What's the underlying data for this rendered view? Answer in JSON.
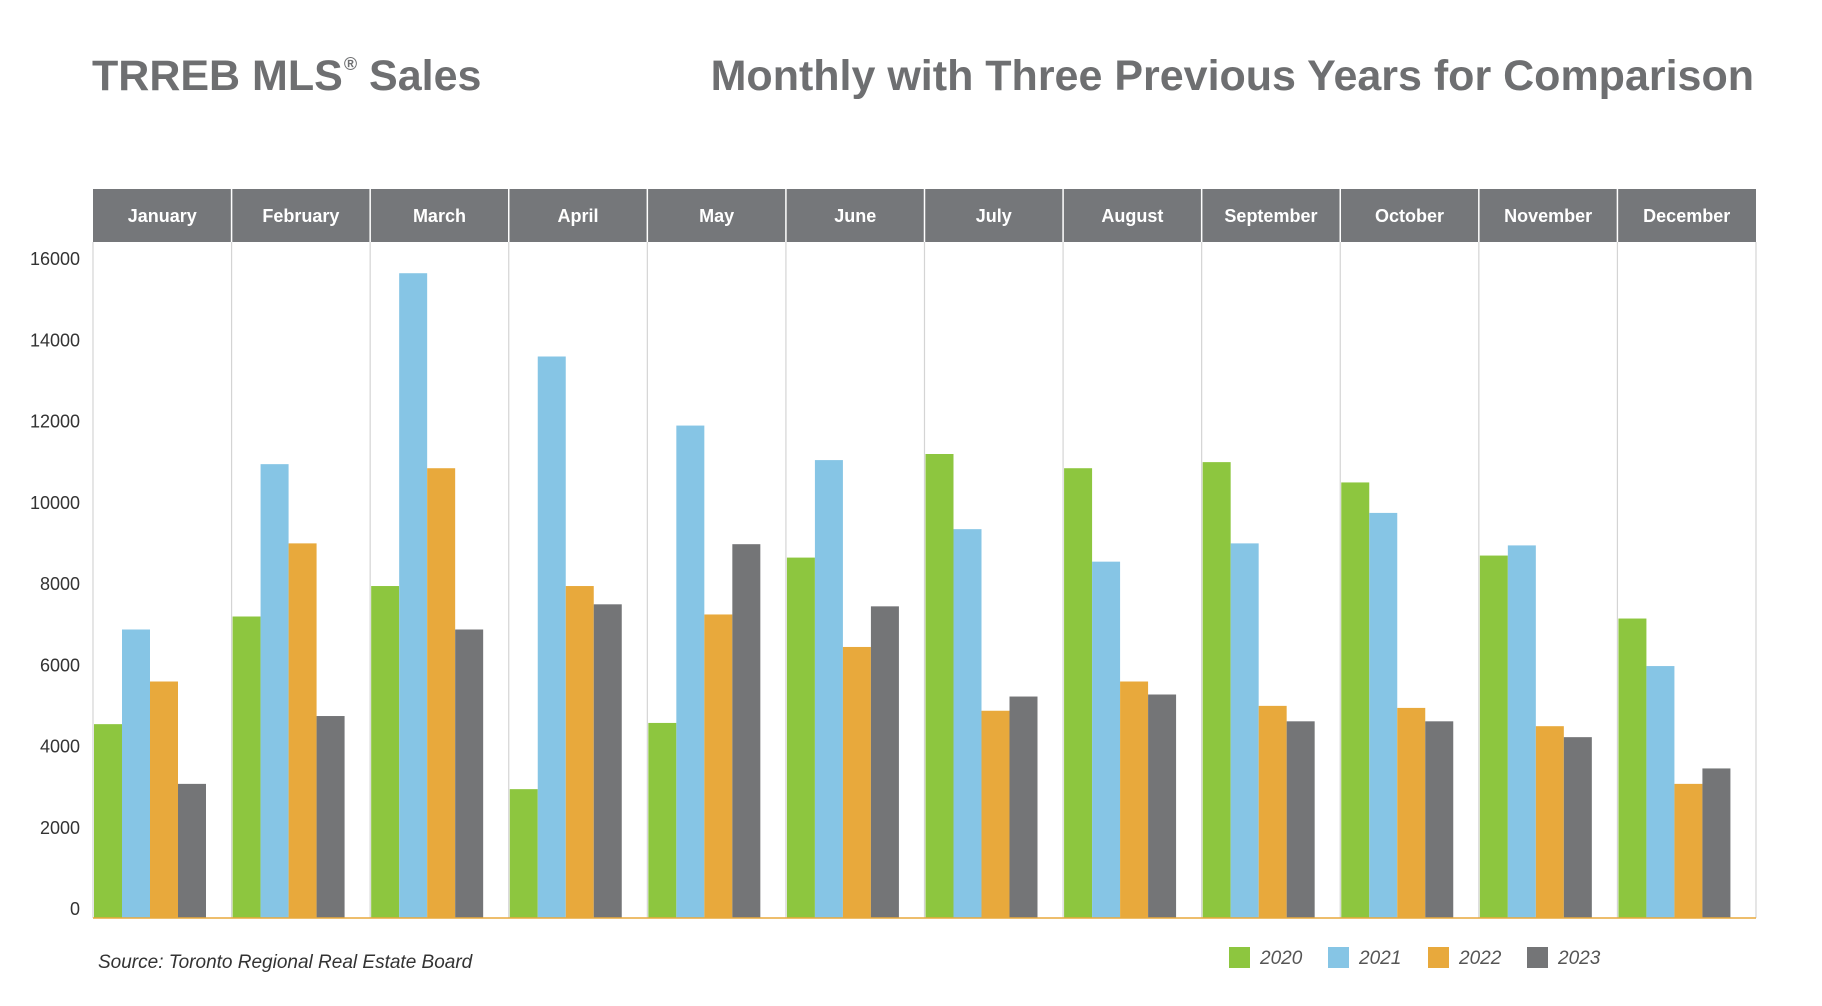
{
  "header": {
    "title_main": "TRREB MLS",
    "title_mark": "®",
    "title_suffix": " Sales",
    "subtitle": "Monthly with Three Previous Years for Comparison"
  },
  "footer": {
    "source": "Source: Toronto Regional Real Estate Board"
  },
  "colors": {
    "2020": "#8dc63f",
    "2021": "#86c5e5",
    "2022": "#e8a93c",
    "2023": "#747577",
    "month_band": "#75777a",
    "grid": "#d4d4d4",
    "baseline": "#e8a93c"
  },
  "chart_data": {
    "type": "bar",
    "title": "TRREB MLS® Sales",
    "subtitle": "Monthly with Three Previous Years for Comparison",
    "categories": [
      "January",
      "February",
      "March",
      "April",
      "May",
      "June",
      "July",
      "August",
      "September",
      "October",
      "November",
      "December"
    ],
    "ylim": [
      0,
      16000
    ],
    "yticks": [
      0,
      2000,
      4000,
      6000,
      8000,
      10000,
      12000,
      14000,
      16000
    ],
    "legend_position": "bottom-right",
    "series": [
      {
        "name": "2020",
        "values": [
          4550,
          7200,
          7950,
          2950,
          4580,
          8650,
          11200,
          10850,
          11000,
          10500,
          8700,
          7150
        ]
      },
      {
        "name": "2021",
        "values": [
          6880,
          10950,
          15650,
          13600,
          11900,
          11050,
          9350,
          8550,
          9000,
          9750,
          8950,
          5980
        ]
      },
      {
        "name": "2022",
        "values": [
          5600,
          9000,
          10850,
          7950,
          7250,
          6450,
          4880,
          5600,
          5000,
          4950,
          4500,
          3080
        ]
      },
      {
        "name": "2023",
        "values": [
          3080,
          4750,
          6880,
          7500,
          8980,
          7450,
          5230,
          5280,
          4620,
          4620,
          4230,
          3460
        ]
      }
    ]
  }
}
